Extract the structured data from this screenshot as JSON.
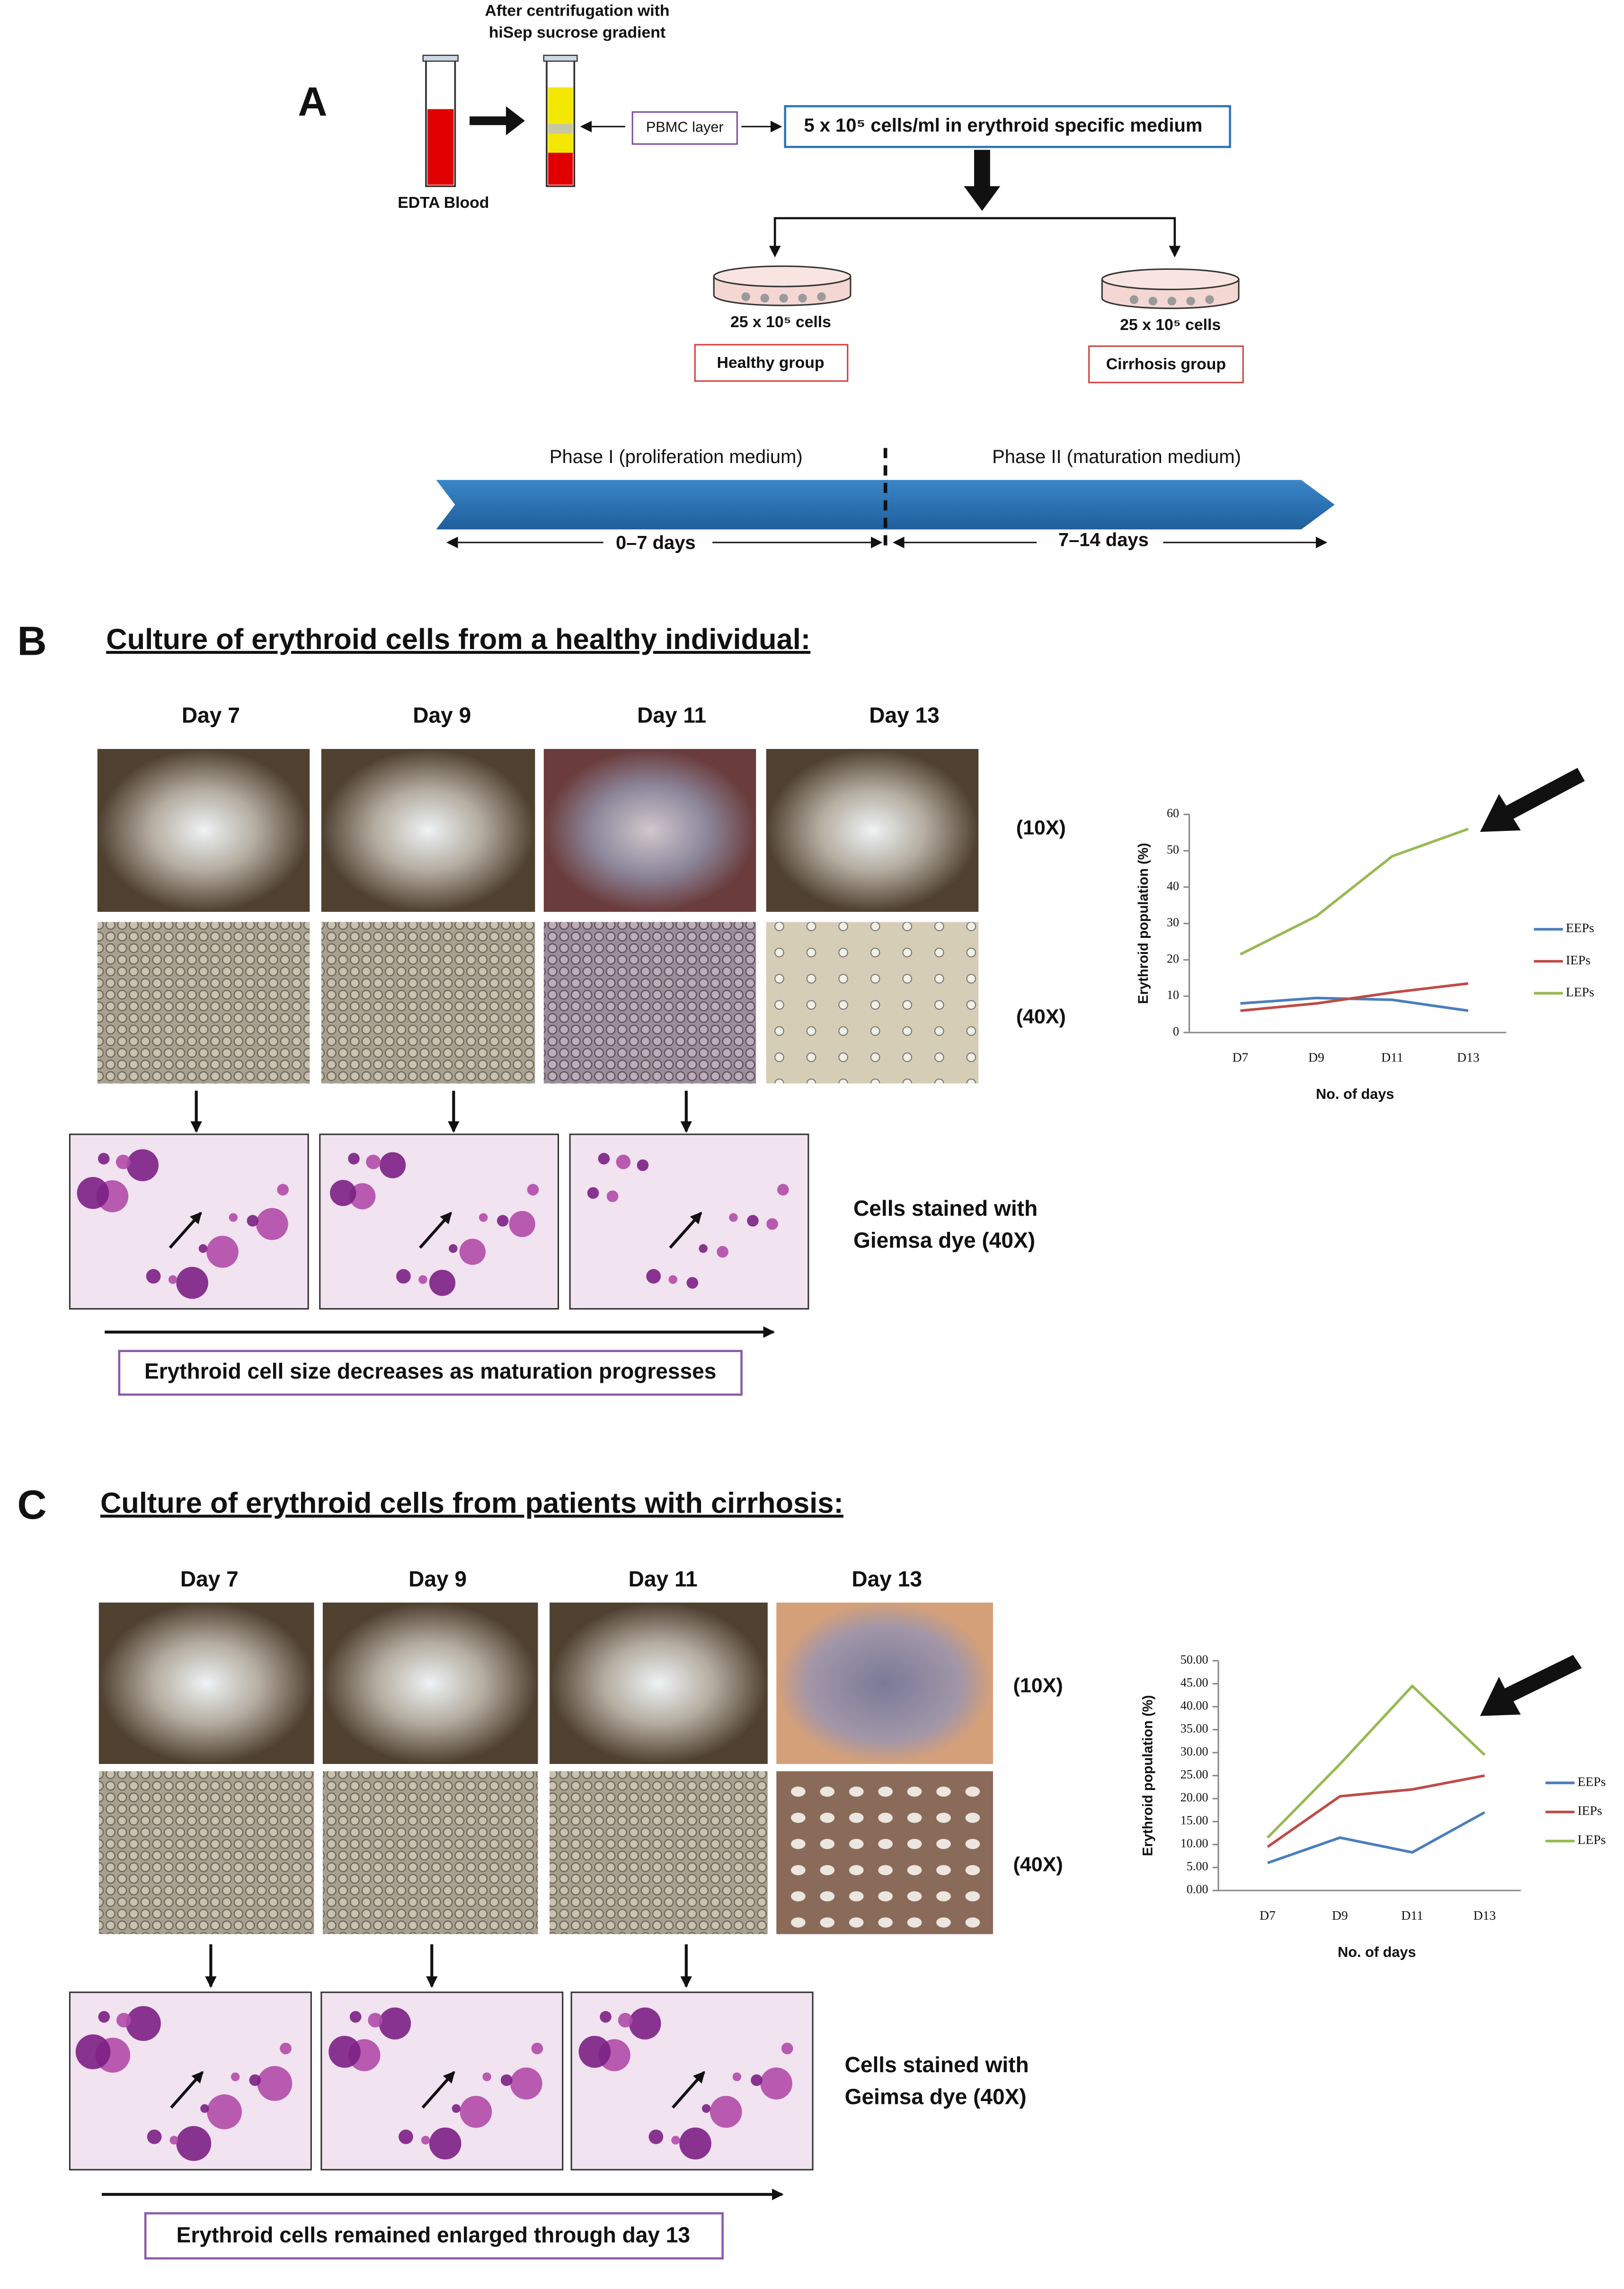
{
  "panel_a": {
    "label": "A",
    "header": [
      "After centrifugation with",
      "hiSep sucrose gradient"
    ],
    "blood_label": "EDTA Blood",
    "pbmc_label": "PBMC layer",
    "medium_label": "5 x 10⁵ cells/ml in erythroid specific medium",
    "groups": [
      {
        "cells": "25 x 10⁵ cells",
        "name": "Healthy group"
      },
      {
        "cells": "25 x 10⁵ cells",
        "name": "Cirrhosis group"
      }
    ],
    "phases": [
      "Phase I (proliferation medium)",
      "Phase II (maturation medium)"
    ],
    "periods": [
      "0–7 days",
      "7–14 days"
    ]
  },
  "panel_b": {
    "label": "B",
    "title": "Culture of erythroid cells from a healthy individual:",
    "days": [
      "Day 7",
      "Day 9",
      "Day 11",
      "Day 13"
    ],
    "magnifications": [
      "(10X)",
      "(40X)"
    ],
    "stain_note": [
      "Cells stained with",
      "Giemsa dye (40X)"
    ],
    "caption": "Erythroid cell size decreases as maturation progresses"
  },
  "panel_c": {
    "label": "C",
    "title": "Culture of erythroid cells from patients with cirrhosis:",
    "days": [
      "Day 7",
      "Day 9",
      "Day 11",
      "Day 13"
    ],
    "magnifications": [
      "(10X)",
      "(40X)"
    ],
    "stain_note": [
      "Cells stained with",
      "Geimsa dye (40X)"
    ],
    "caption": "Erythroid cells remained enlarged through day 13"
  },
  "chart_data": [
    {
      "type": "line",
      "y_label": "Erythroid population (%)",
      "x_label": "No. of days",
      "categories": [
        "D7",
        "D9",
        "D11",
        "D13"
      ],
      "series": [
        {
          "name": "EEPs",
          "color": "#4a7ebb",
          "values": [
            8,
            9.5,
            9,
            6
          ]
        },
        {
          "name": "IEPs",
          "color": "#be4b48",
          "values": [
            6,
            8,
            11,
            13.5
          ]
        },
        {
          "name": "LEPs",
          "color": "#98b954",
          "values": [
            21.5,
            32,
            48.5,
            56
          ]
        }
      ],
      "ylim": [
        0,
        60
      ],
      "yticks": [
        0,
        10,
        20,
        30,
        40,
        50,
        60
      ]
    },
    {
      "type": "line",
      "y_label": "Erythroid population (%)",
      "x_label": "No. of days",
      "categories": [
        "D7",
        "D9",
        "D11",
        "D13"
      ],
      "series": [
        {
          "name": "EEPs",
          "color": "#4a7ebb",
          "values": [
            6,
            11.5,
            8.3,
            17
          ]
        },
        {
          "name": "IEPs",
          "color": "#be4b48",
          "values": [
            9.5,
            20.5,
            22,
            25
          ]
        },
        {
          "name": "LEPs",
          "color": "#98b954",
          "values": [
            11.5,
            27.5,
            44.5,
            29.5
          ]
        }
      ],
      "ylim": [
        0,
        50
      ],
      "yticks": [
        {
          "value": 0,
          "label": "0.00"
        },
        {
          "value": 5,
          "label": "5.00"
        },
        {
          "value": 10,
          "label": "10.00"
        },
        {
          "value": 15,
          "label": "15.00"
        },
        {
          "value": 20,
          "label": "20.00"
        },
        {
          "value": 25,
          "label": "25.00"
        },
        {
          "value": 30,
          "label": "30.00"
        },
        {
          "value": 35,
          "label": "35.00"
        },
        {
          "value": 40,
          "label": "40.00"
        },
        {
          "value": 45,
          "label": "45.00"
        },
        {
          "value": 50,
          "label": "50.00"
        }
      ]
    }
  ]
}
